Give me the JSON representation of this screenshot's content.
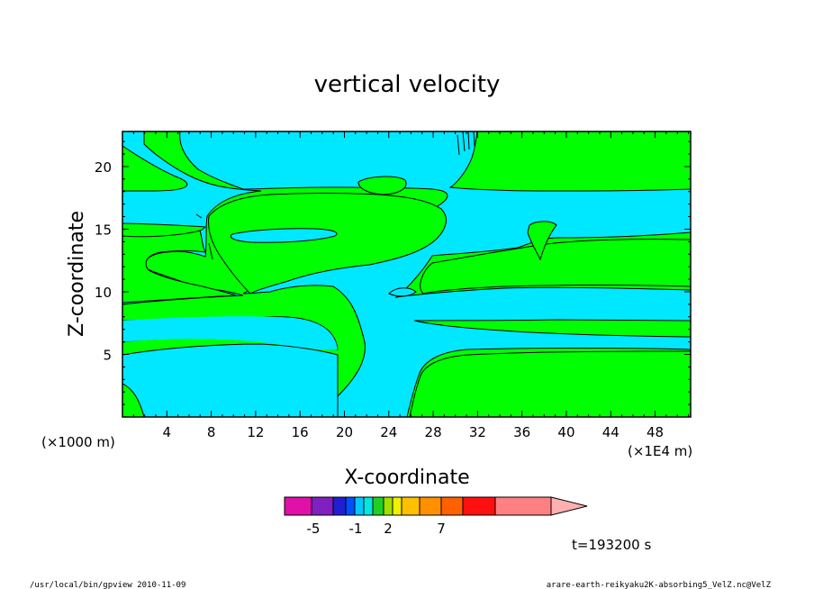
{
  "chart_data": {
    "type": "contour",
    "title": "vertical velocity",
    "xlabel": "X-coordinate",
    "ylabel": "Z-coordinate",
    "x_unit": "(×1E4 m)",
    "y_unit": "(×1000 m)",
    "x_ticks": [
      4,
      8,
      12,
      16,
      20,
      24,
      28,
      32,
      36,
      40,
      44,
      48
    ],
    "y_ticks": [
      5,
      10,
      15,
      20
    ],
    "xlim": [
      0,
      51.2
    ],
    "ylim": [
      0,
      22.8
    ],
    "colorbar": {
      "labels": [
        "-5",
        "-1",
        "2",
        "7"
      ],
      "colors": [
        "#e010a8",
        "#8020c0",
        "#2020d0",
        "#0050ff",
        "#00c8ff",
        "#00e8e0",
        "#20d020",
        "#a0e000",
        "#f0f000",
        "#ffc000",
        "#ff9000",
        "#ff6000",
        "#ff1010",
        "#ff8080",
        "#ffb0b0"
      ]
    },
    "field_colors": {
      "positive": "#00ff00",
      "negative": "#00e8ff"
    },
    "time_label": "t=193200 s"
  },
  "footer": {
    "left": "/usr/local/bin/gpview   2010-11-09",
    "right": "arare-earth-reikyaku2K-absorbing5_VelZ.nc@VelZ"
  }
}
